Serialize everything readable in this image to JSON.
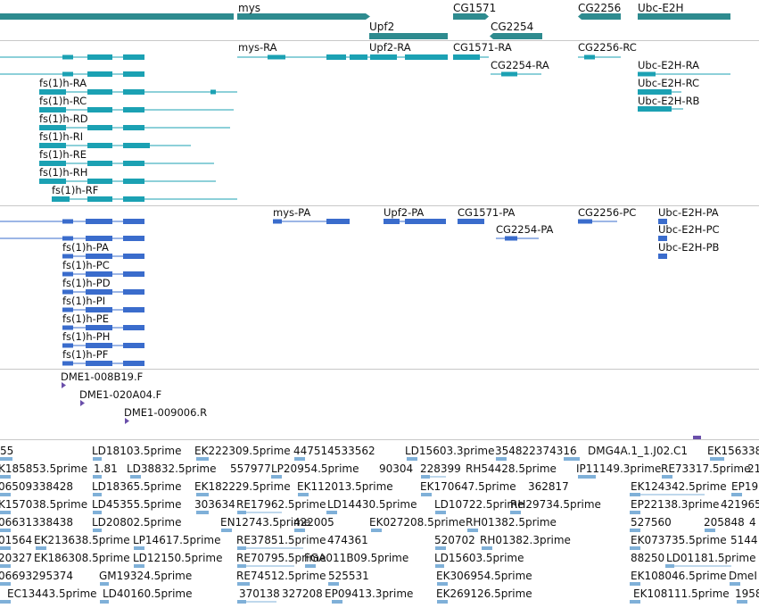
{
  "colors": {
    "gene": "#2e8b8f",
    "transcript": "#1ba1b3",
    "protein": "#3a6ccc",
    "clone": "#6a4faa",
    "est": "#7fb0d8",
    "separator": "#c8c8c8"
  },
  "genes": [
    {
      "label": "mys"
    },
    {
      "label": "Upf2"
    },
    {
      "label": "CG1571"
    },
    {
      "label": "CG2254"
    },
    {
      "label": "CG2256"
    },
    {
      "label": "Ubc-E2H"
    }
  ],
  "transcripts": [
    {
      "label": "mys-RA"
    },
    {
      "label": "Upf2-RA"
    },
    {
      "label": "CG1571-RA"
    },
    {
      "label": "CG2254-RA"
    },
    {
      "label": "CG2256-RC"
    },
    {
      "label": "Ubc-E2H-RA"
    },
    {
      "label": "Ubc-E2H-RC"
    },
    {
      "label": "Ubc-E2H-RB"
    },
    {
      "label": "fs(1)h-RA"
    },
    {
      "label": "fs(1)h-RC"
    },
    {
      "label": "fs(1)h-RD"
    },
    {
      "label": "fs(1)h-RI"
    },
    {
      "label": "fs(1)h-RE"
    },
    {
      "label": "fs(1)h-RH"
    },
    {
      "label": "fs(1)h-RF"
    }
  ],
  "proteins": [
    {
      "label": "mys-PA"
    },
    {
      "label": "Upf2-PA"
    },
    {
      "label": "CG1571-PA"
    },
    {
      "label": "CG2254-PA"
    },
    {
      "label": "CG2256-PC"
    },
    {
      "label": "Ubc-E2H-PA"
    },
    {
      "label": "Ubc-E2H-PC"
    },
    {
      "label": "Ubc-E2H-PB"
    },
    {
      "label": "fs(1)h-PA"
    },
    {
      "label": "fs(1)h-PC"
    },
    {
      "label": "fs(1)h-PD"
    },
    {
      "label": "fs(1)h-PI"
    },
    {
      "label": "fs(1)h-PE"
    },
    {
      "label": "fs(1)h-PH"
    },
    {
      "label": "fs(1)h-PF"
    }
  ],
  "clones": [
    {
      "label": "DME1-008B19.F"
    },
    {
      "label": "DME1-020A04.F"
    },
    {
      "label": "DME1-009006.R"
    }
  ],
  "ests": [
    "55",
    "LD18103.5prime",
    "EK222309.5prime",
    "447514533562",
    "LD15603.3prime",
    "354822374316",
    "DMG4A.1_1.J02.C1",
    "EK156338",
    "K185853.5prime",
    "1.81",
    "LD38832.5prime",
    "557977",
    "LP20954.5prime",
    "90304",
    "228399",
    "RH54428.5prime",
    "IP11149.3prime",
    "RE73317.5prime",
    "21",
    "06509338428",
    "LD18365.5prime",
    "EK182229.5prime",
    "EK112013.5prime",
    "EK170647.5prime",
    "362817",
    "EK124342.5prime",
    "EP19",
    "K157038.5prime",
    "LD45355.5prime",
    "303634",
    "RE17962.5prime",
    "LD14430.5prime",
    "LD10722.5prime",
    "RH29734.5prime",
    "EP22138.3prime",
    "421965",
    "06631338438",
    "LD20802.5prime",
    "EN12743.5prime",
    "422005",
    "EK027208.5prime",
    "RH01382.5prime",
    "527560",
    "205848",
    "4",
    "01564",
    "EK213638.5prime",
    "LP14617.5prime",
    "RE37851.5prime",
    "474361",
    "520702",
    "RH01382.3prime",
    "EK073735.5prime",
    "5144",
    "20327",
    "EK186308.5prime",
    "LD12150.5prime",
    "RE70795.5prime",
    "FGA011B09.5prime",
    "LD15603.5prime",
    "88250",
    "LD01181.5prime",
    "06693295374",
    "GM19324.5prime",
    "RE74512.5prime",
    "525531",
    "EK306954.5prime",
    "EK108046.5prime",
    "DmeI",
    "EC13443.5prime",
    "LD40160.5prime",
    "370138",
    "327208",
    "EP09413.3prime",
    "EK269126.5prime",
    "EK108111.5prime",
    "1958"
  ]
}
